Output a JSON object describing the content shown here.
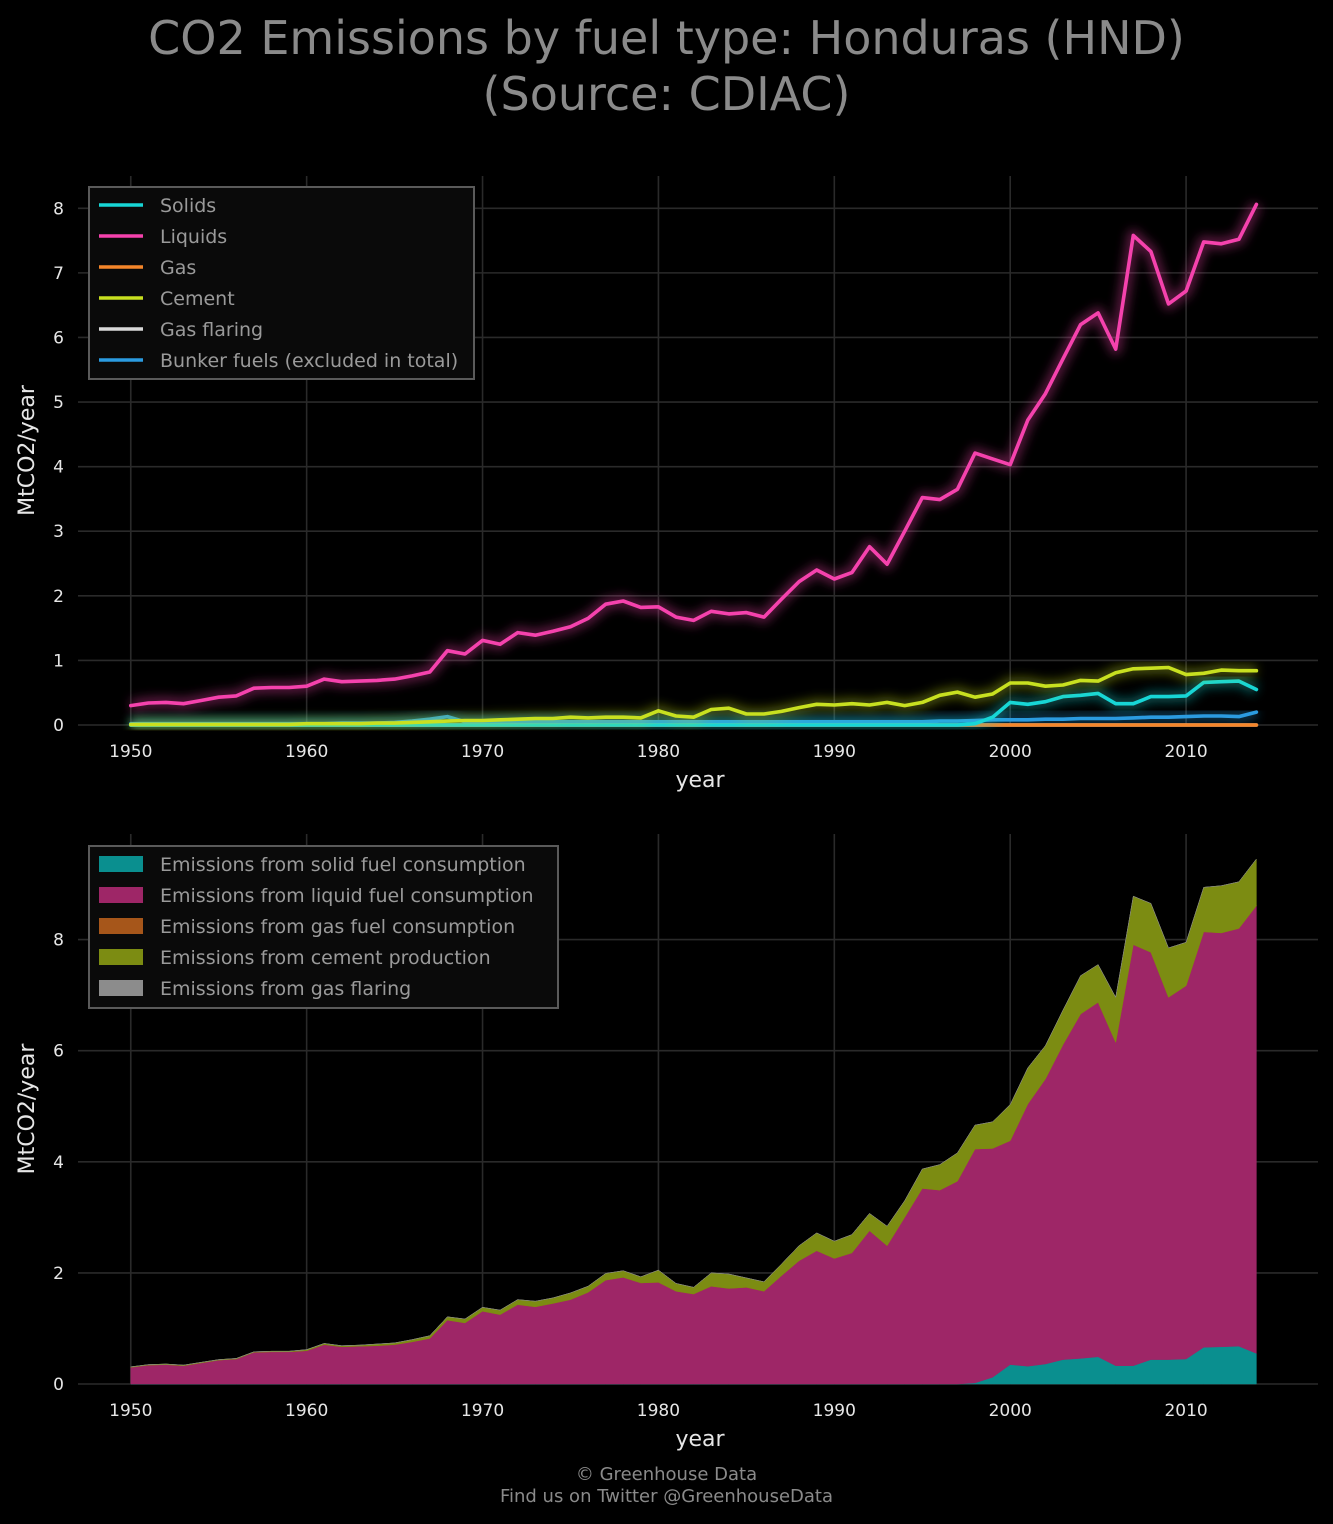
{
  "page": {
    "title_line1": "CO2 Emissions by fuel type: Honduras (HND)",
    "title_line2": "(Source: CDIAC)",
    "footer_line1": "© Greenhouse Data",
    "footer_line2": "Find us on Twitter @GreenhouseData"
  },
  "chart_data": [
    {
      "type": "line",
      "xlabel": "year",
      "ylabel": "MtCO2/year",
      "xlim": [
        1947,
        2017.5
      ],
      "ylim": [
        0,
        8.5
      ],
      "xticks": [
        1950,
        1960,
        1970,
        1980,
        1990,
        2000,
        2010
      ],
      "yticks": [
        0,
        1,
        2,
        3,
        4,
        5,
        6,
        7,
        8
      ],
      "grid": true,
      "legend_position": "top-left",
      "x": [
        1950,
        1951,
        1952,
        1953,
        1954,
        1955,
        1956,
        1957,
        1958,
        1959,
        1960,
        1961,
        1962,
        1963,
        1964,
        1965,
        1966,
        1967,
        1968,
        1969,
        1970,
        1971,
        1972,
        1973,
        1974,
        1975,
        1976,
        1977,
        1978,
        1979,
        1980,
        1981,
        1982,
        1983,
        1984,
        1985,
        1986,
        1987,
        1988,
        1989,
        1990,
        1991,
        1992,
        1993,
        1994,
        1995,
        1996,
        1997,
        1998,
        1999,
        2000,
        2001,
        2002,
        2003,
        2004,
        2005,
        2006,
        2007,
        2008,
        2009,
        2010,
        2011,
        2012,
        2013,
        2014
      ],
      "series": [
        {
          "name": "Solids",
          "color": "#17d6d6",
          "values": [
            0,
            0,
            0,
            0,
            0,
            0,
            0,
            0,
            0,
            0,
            0,
            0,
            0,
            0,
            0,
            0,
            0,
            0,
            0,
            0,
            0,
            0,
            0,
            0,
            0,
            0,
            0,
            0,
            0,
            0,
            0,
            0,
            0,
            0,
            0,
            0,
            0,
            0,
            0,
            0,
            0,
            0,
            0,
            0,
            0,
            0,
            0,
            0,
            0.02,
            0.12,
            0.35,
            0.32,
            0.36,
            0.44,
            0.46,
            0.49,
            0.33,
            0.33,
            0.44,
            0.44,
            0.45,
            0.66,
            0.67,
            0.68,
            0.55
          ]
        },
        {
          "name": "Liquids",
          "color": "#f542ad",
          "values": [
            0.3,
            0.34,
            0.35,
            0.33,
            0.38,
            0.43,
            0.45,
            0.57,
            0.58,
            0.58,
            0.6,
            0.71,
            0.67,
            0.68,
            0.69,
            0.71,
            0.76,
            0.82,
            1.15,
            1.1,
            1.31,
            1.25,
            1.43,
            1.39,
            1.45,
            1.52,
            1.65,
            1.87,
            1.92,
            1.82,
            1.83,
            1.67,
            1.62,
            1.76,
            1.72,
            1.74,
            1.67,
            1.95,
            2.22,
            2.4,
            2.26,
            2.36,
            2.76,
            2.49,
            3.0,
            3.52,
            3.49,
            3.65,
            4.21,
            4.12,
            4.03,
            4.72,
            5.13,
            5.67,
            6.2,
            6.38,
            5.82,
            7.58,
            7.33,
            6.52,
            6.72,
            7.48,
            7.45,
            7.52,
            8.06
          ]
        },
        {
          "name": "Gas",
          "color": "#f5862a",
          "values": [
            0,
            0,
            0,
            0,
            0,
            0,
            0,
            0,
            0,
            0,
            0,
            0,
            0,
            0,
            0,
            0,
            0,
            0,
            0,
            0,
            0,
            0,
            0,
            0,
            0,
            0,
            0,
            0,
            0,
            0,
            0,
            0,
            0,
            0,
            0,
            0,
            0,
            0,
            0,
            0,
            0,
            0,
            0,
            0,
            0,
            0,
            0,
            0,
            0,
            0,
            0,
            0,
            0,
            0,
            0,
            0,
            0,
            0,
            0,
            0,
            0,
            0,
            0,
            0,
            0
          ]
        },
        {
          "name": "Cement",
          "color": "#c8e020",
          "values": [
            0.01,
            0.01,
            0.01,
            0.01,
            0.01,
            0.01,
            0.01,
            0.01,
            0.01,
            0.01,
            0.02,
            0.02,
            0.02,
            0.02,
            0.03,
            0.03,
            0.04,
            0.05,
            0.06,
            0.07,
            0.07,
            0.08,
            0.09,
            0.1,
            0.1,
            0.12,
            0.11,
            0.12,
            0.12,
            0.11,
            0.22,
            0.14,
            0.12,
            0.24,
            0.26,
            0.17,
            0.17,
            0.21,
            0.27,
            0.32,
            0.31,
            0.33,
            0.31,
            0.35,
            0.3,
            0.35,
            0.46,
            0.51,
            0.43,
            0.48,
            0.65,
            0.65,
            0.6,
            0.62,
            0.69,
            0.68,
            0.81,
            0.87,
            0.88,
            0.89,
            0.78,
            0.8,
            0.85,
            0.84,
            0.84
          ]
        },
        {
          "name": "Gas flaring",
          "color": "#d9d9d9",
          "values": [
            0,
            0,
            0,
            0,
            0,
            0,
            0,
            0,
            0,
            0,
            0,
            0,
            0,
            0,
            0,
            0,
            0,
            0,
            0,
            0,
            0,
            0,
            0,
            0,
            0,
            0,
            0,
            0,
            0,
            0,
            0,
            0,
            0,
            0,
            0,
            0,
            0,
            0,
            0,
            0,
            0,
            0,
            0,
            0,
            0,
            0,
            0,
            0,
            0,
            0,
            0,
            0,
            0,
            0,
            0,
            0,
            0,
            0,
            0,
            0,
            0,
            0,
            0,
            0,
            0
          ]
        },
        {
          "name": "Bunker fuels (excluded in total)",
          "color": "#2b9be0",
          "values": [
            0.02,
            0.02,
            0.02,
            0.02,
            0.02,
            0.02,
            0.02,
            0.02,
            0.02,
            0.02,
            0.02,
            0.02,
            0.03,
            0.03,
            0.03,
            0.04,
            0.06,
            0.09,
            0.13,
            0.05,
            0.05,
            0.05,
            0.05,
            0.05,
            0.05,
            0.05,
            0.05,
            0.05,
            0.05,
            0.05,
            0.05,
            0.05,
            0.05,
            0.05,
            0.05,
            0.05,
            0.05,
            0.05,
            0.05,
            0.05,
            0.05,
            0.05,
            0.05,
            0.05,
            0.05,
            0.05,
            0.06,
            0.06,
            0.07,
            0.08,
            0.08,
            0.08,
            0.09,
            0.09,
            0.1,
            0.1,
            0.1,
            0.11,
            0.12,
            0.12,
            0.13,
            0.14,
            0.14,
            0.13,
            0.2
          ]
        }
      ]
    },
    {
      "type": "area",
      "stacked": true,
      "xlabel": "year",
      "ylabel": "MtCO2/year",
      "xlim": [
        1947,
        2017.5
      ],
      "ylim": [
        0,
        9.9
      ],
      "xticks": [
        1950,
        1960,
        1970,
        1980,
        1990,
        2000,
        2010
      ],
      "yticks": [
        0,
        2,
        4,
        6,
        8
      ],
      "grid": true,
      "legend_position": "top-left",
      "x": [
        1950,
        1951,
        1952,
        1953,
        1954,
        1955,
        1956,
        1957,
        1958,
        1959,
        1960,
        1961,
        1962,
        1963,
        1964,
        1965,
        1966,
        1967,
        1968,
        1969,
        1970,
        1971,
        1972,
        1973,
        1974,
        1975,
        1976,
        1977,
        1978,
        1979,
        1980,
        1981,
        1982,
        1983,
        1984,
        1985,
        1986,
        1987,
        1988,
        1989,
        1990,
        1991,
        1992,
        1993,
        1994,
        1995,
        1996,
        1997,
        1998,
        1999,
        2000,
        2001,
        2002,
        2003,
        2004,
        2005,
        2006,
        2007,
        2008,
        2009,
        2010,
        2011,
        2012,
        2013,
        2014
      ],
      "series": [
        {
          "name": "Emissions from solid fuel consumption",
          "color": "#0a8f8f",
          "ref_series": "Solids"
        },
        {
          "name": "Emissions from liquid fuel consumption",
          "color": "#9e2667",
          "ref_series": "Liquids"
        },
        {
          "name": "Emissions from gas fuel consumption",
          "color": "#a6561a",
          "ref_series": "Gas"
        },
        {
          "name": "Emissions from cement production",
          "color": "#7c8c12",
          "ref_series": "Cement"
        },
        {
          "name": "Emissions from gas flaring",
          "color": "#8c8c8c",
          "ref_series": "Gas flaring"
        }
      ]
    }
  ]
}
